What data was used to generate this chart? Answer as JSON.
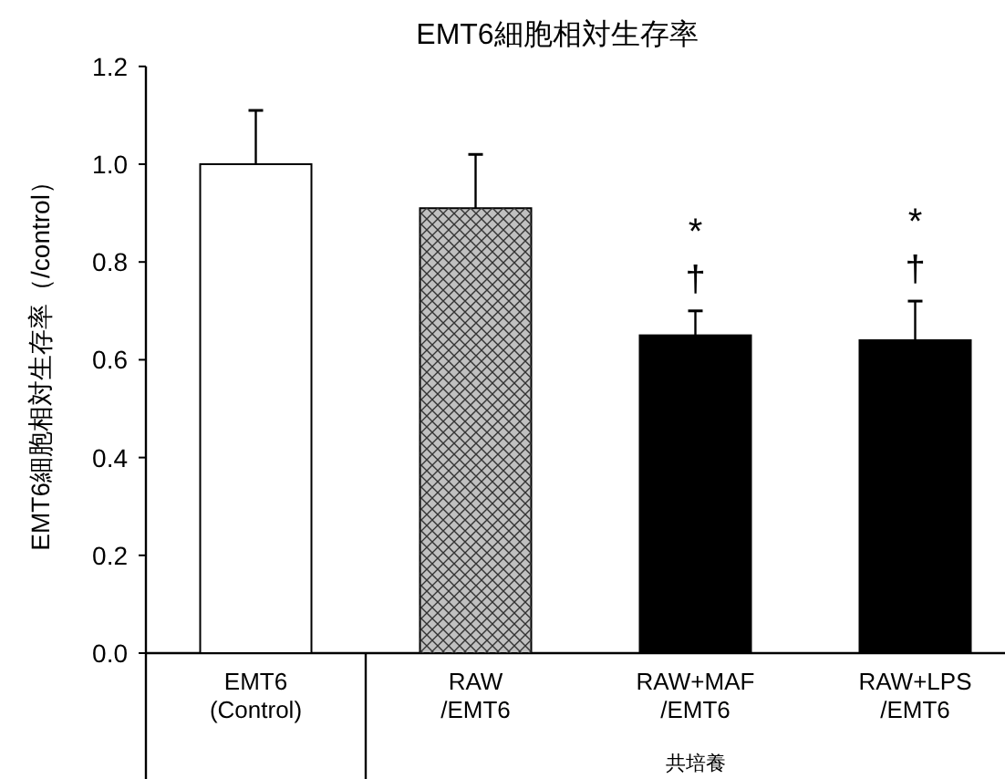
{
  "chart_data": {
    "type": "bar",
    "title": "EMT6細胞相対生存率",
    "ylabel": "EMT6細胞相対生存率（/control）",
    "categories": [
      "EMT6\n(Control)",
      "RAW\n/EMT6",
      "RAW+MAF\n/EMT6",
      "RAW+LPS\n/EMT6"
    ],
    "values": [
      1.0,
      0.91,
      0.65,
      0.64
    ],
    "colors": [
      "#ffffff",
      "#c0c0c0",
      "#000000",
      "#000000"
    ],
    "errors": [
      0.11,
      0.11,
      0.05,
      0.08
    ],
    "ylim": [
      0,
      1.2
    ],
    "yticks": [
      {
        "value": 0,
        "label": "0.0"
      },
      {
        "value": 0.2,
        "label": "0.2"
      },
      {
        "value": 0.4,
        "label": "0.4"
      },
      {
        "value": 0.6,
        "label": "0.6"
      },
      {
        "value": 0.8,
        "label": "0.8"
      },
      {
        "value": 1,
        "label": "1.0"
      },
      {
        "value": 1.2,
        "label": "1.2"
      }
    ],
    "annotations": [
      "*",
      "†",
      "*",
      "†",
      "共培養"
    ]
  }
}
